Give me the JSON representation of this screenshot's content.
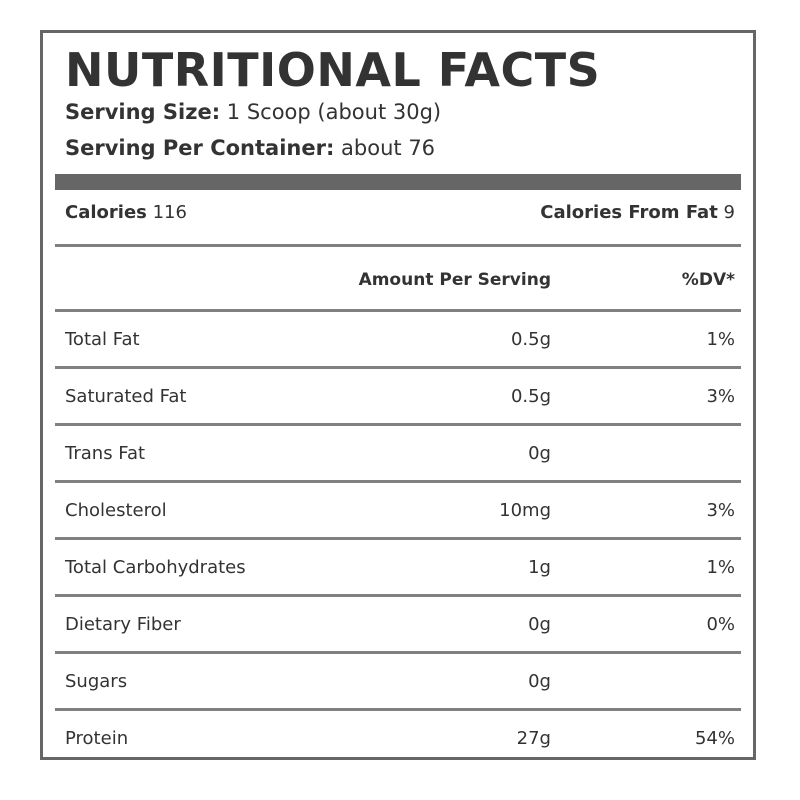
{
  "label": {
    "title": "NUTRITIONAL FACTS",
    "serving_size_label": "Serving Size:",
    "serving_size_value": "1 Scoop (about 30g)",
    "servings_per_container_label": "Serving Per Container:",
    "servings_per_container_value": "about 76",
    "calories_label": "Calories",
    "calories_value": "116",
    "calories_from_fat_label": "Calories From Fat",
    "calories_from_fat_value": "9",
    "columns": {
      "amount": "Amount Per Serving",
      "dv": "%DV*"
    },
    "rows": [
      {
        "name": "Total Fat",
        "amount": "0.5g",
        "dv": "1%"
      },
      {
        "name": "Saturated Fat",
        "amount": "0.5g",
        "dv": "3%"
      },
      {
        "name": "Trans Fat",
        "amount": "0g",
        "dv": ""
      },
      {
        "name": "Cholesterol",
        "amount": "10mg",
        "dv": "3%"
      },
      {
        "name": "Total Carbohydrates",
        "amount": "1g",
        "dv": "1%"
      },
      {
        "name": "Dietary Fiber",
        "amount": "0g",
        "dv": "0%"
      },
      {
        "name": "Sugars",
        "amount": "0g",
        "dv": ""
      },
      {
        "name": "Protein",
        "amount": "27g",
        "dv": "54%"
      }
    ]
  }
}
